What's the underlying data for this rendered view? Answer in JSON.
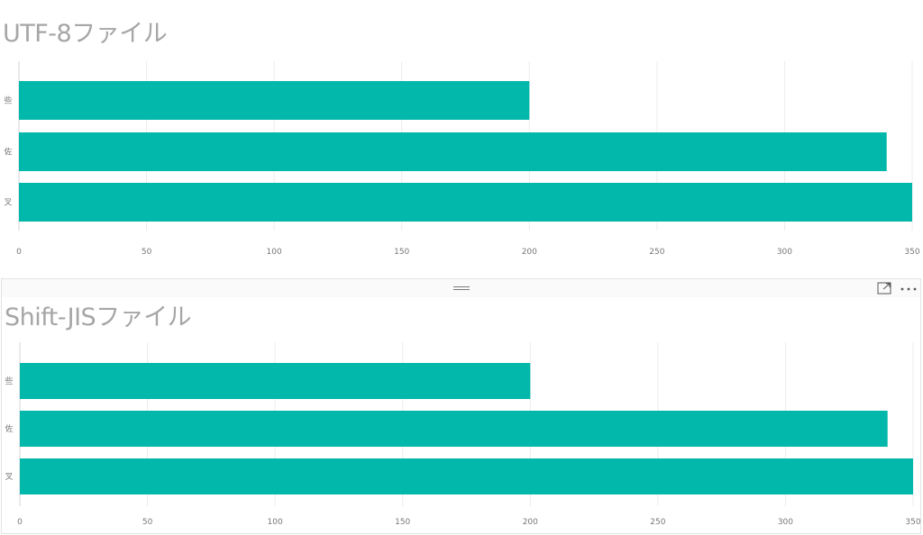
{
  "charts": [
    {
      "title": "UTF-8ファイル"
    },
    {
      "title": "Shift-JISファイル",
      "header_icons": {
        "drag": "drag-handle-icon",
        "focus": "focus-mode-icon",
        "more": "more-options-icon"
      }
    }
  ],
  "chart_data": [
    {
      "type": "bar",
      "orientation": "horizontal",
      "title": "UTF-8ファイル",
      "categories": [
        "些",
        "佐",
        "叉"
      ],
      "values": [
        200,
        340,
        350
      ],
      "xlabel": "",
      "ylabel": "",
      "xlim": [
        0,
        350
      ],
      "x_ticks": [
        0,
        50,
        100,
        150,
        200,
        250,
        300,
        350
      ],
      "grid": true,
      "legend": "none",
      "bar_color": "#01B8AA"
    },
    {
      "type": "bar",
      "orientation": "horizontal",
      "title": "Shift-JISファイル",
      "categories": [
        "些",
        "佐",
        "叉"
      ],
      "values": [
        200,
        340,
        350
      ],
      "xlabel": "",
      "ylabel": "",
      "xlim": [
        0,
        350
      ],
      "x_ticks": [
        0,
        50,
        100,
        150,
        200,
        250,
        300,
        350
      ],
      "grid": true,
      "legend": "none",
      "bar_color": "#01B8AA"
    }
  ],
  "colors": {
    "bar": "#01B8AA",
    "gridline": "#ececec",
    "axis_text": "#777777",
    "title": "#a6a6a6"
  }
}
